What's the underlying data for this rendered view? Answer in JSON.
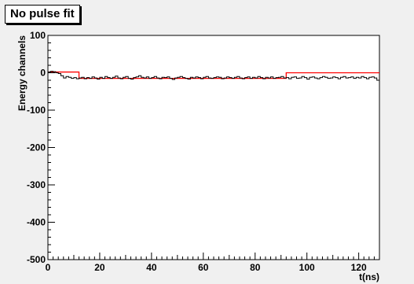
{
  "chart_data": {
    "type": "line",
    "title": "No pulse fit",
    "xlabel": "t(ns)",
    "ylabel": "Energy channels",
    "xlim": [
      0,
      128
    ],
    "ylim": [
      -500,
      100
    ],
    "x_ticks": [
      0,
      20,
      40,
      60,
      80,
      100,
      120
    ],
    "x_tick_labels": [
      "0",
      "20",
      "40",
      "60",
      "80",
      "100",
      "120"
    ],
    "y_ticks": [
      100,
      0,
      -100,
      -200,
      -300,
      -400,
      -500
    ],
    "y_tick_labels": [
      "100",
      "0",
      "-100",
      "-200",
      "-300",
      "-400",
      "-500"
    ],
    "grid": false,
    "legend": "none",
    "colors": {
      "data": "#000000",
      "fit": "#ff0000",
      "frame_bg": "#ffffff",
      "pad_bg": "#f0f0f0"
    },
    "series": [
      {
        "style": "histogram",
        "color": "#000000",
        "bin_width": 1,
        "x_start": 0,
        "values": [
          2,
          4,
          3,
          0,
          -2,
          -8,
          -14,
          -10,
          -12,
          -15,
          -13,
          -16,
          -14,
          -12,
          -16,
          -13,
          -15,
          -11,
          -14,
          -17,
          -12,
          -15,
          -10,
          -13,
          -15,
          -12,
          -9,
          -14,
          -16,
          -12,
          -10,
          -15,
          -17,
          -13,
          -11,
          -8,
          -12,
          -14,
          -11,
          -15,
          -13,
          -10,
          -14,
          -16,
          -12,
          -13,
          -11,
          -15,
          -18,
          -14,
          -12,
          -10,
          -13,
          -15,
          -17,
          -12,
          -14,
          -11,
          -13,
          -16,
          -12,
          -10,
          -14,
          -15,
          -13,
          -11,
          -12,
          -16,
          -14,
          -11,
          -13,
          -15,
          -12,
          -10,
          -14,
          -16,
          -13,
          -11,
          -15,
          -12,
          -14,
          -10,
          -13,
          -16,
          -12,
          -14,
          -11,
          -15,
          -13,
          -12,
          -10,
          -14,
          -13,
          -16,
          -12,
          -11,
          -15,
          -14,
          -10,
          -13,
          -17,
          -12,
          -11,
          -14,
          -16,
          -13,
          -10,
          -12,
          -15,
          -14,
          -11,
          -13,
          -16,
          -12,
          -10,
          -14,
          -13,
          -11,
          -15,
          -12,
          -14,
          -10,
          -13,
          -16,
          -12,
          -11,
          -14,
          -20
        ]
      },
      {
        "style": "step",
        "color": "#ff0000",
        "points": [
          [
            0,
            2
          ],
          [
            12,
            2
          ],
          [
            12,
            -15
          ],
          [
            92,
            -15
          ],
          [
            92,
            0
          ],
          [
            128,
            0
          ]
        ]
      }
    ]
  }
}
